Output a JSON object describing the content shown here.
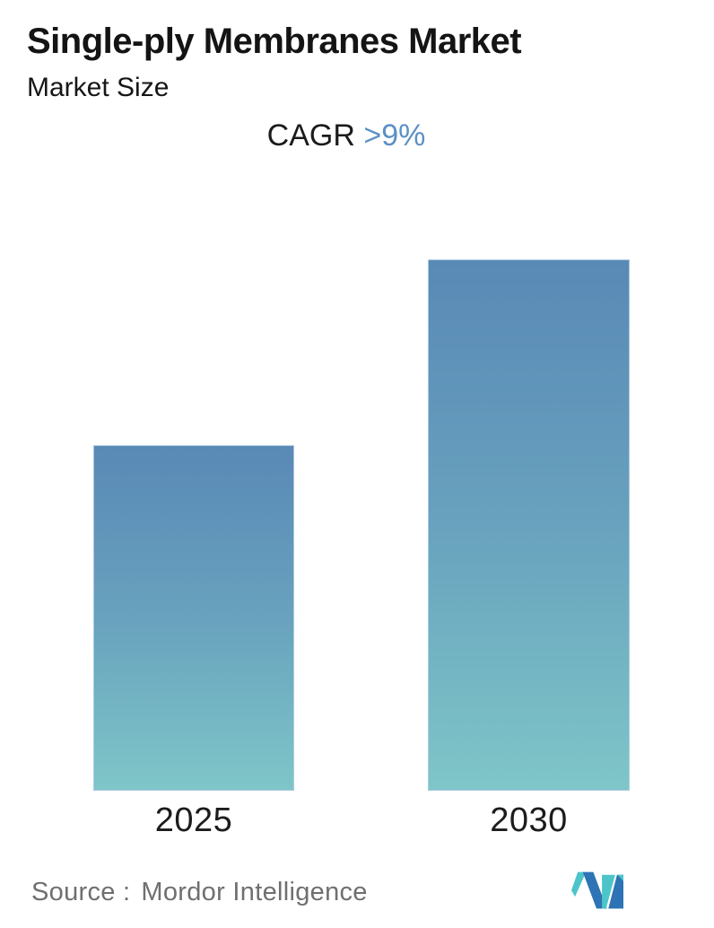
{
  "header": {
    "title": "Single-ply Membranes Market",
    "subtitle": "Market Size",
    "cagr_label": "CAGR",
    "cagr_value": ">9%",
    "cagr_value_color": "#5b90c5",
    "text_color": "#141414"
  },
  "chart_data": {
    "type": "bar",
    "title": "Single-ply Membranes Market",
    "subtitle": "Market Size",
    "annotation": "CAGR >9%",
    "categories": [
      "2025",
      "2030"
    ],
    "values": [
      65,
      100
    ],
    "values_unit": "relative bar height % (no numeric value axis displayed)",
    "implied_ratio": "2030 ≈ 2025 × 1.09^5 (CAGR >9%)",
    "xlabel": "",
    "ylabel": "",
    "grid": false,
    "legend": false,
    "bar_gradient_top": "#5989b6",
    "bar_gradient_bottom": "#7ec6c8",
    "bar_border_color": "#b0cde4"
  },
  "footer": {
    "source_label": "Source :",
    "source_value": "Mordor Intelligence",
    "logo_name": "mordor-intelligence-logo",
    "logo_teal": "#4cc4ca",
    "logo_blue": "#2e73b5"
  }
}
